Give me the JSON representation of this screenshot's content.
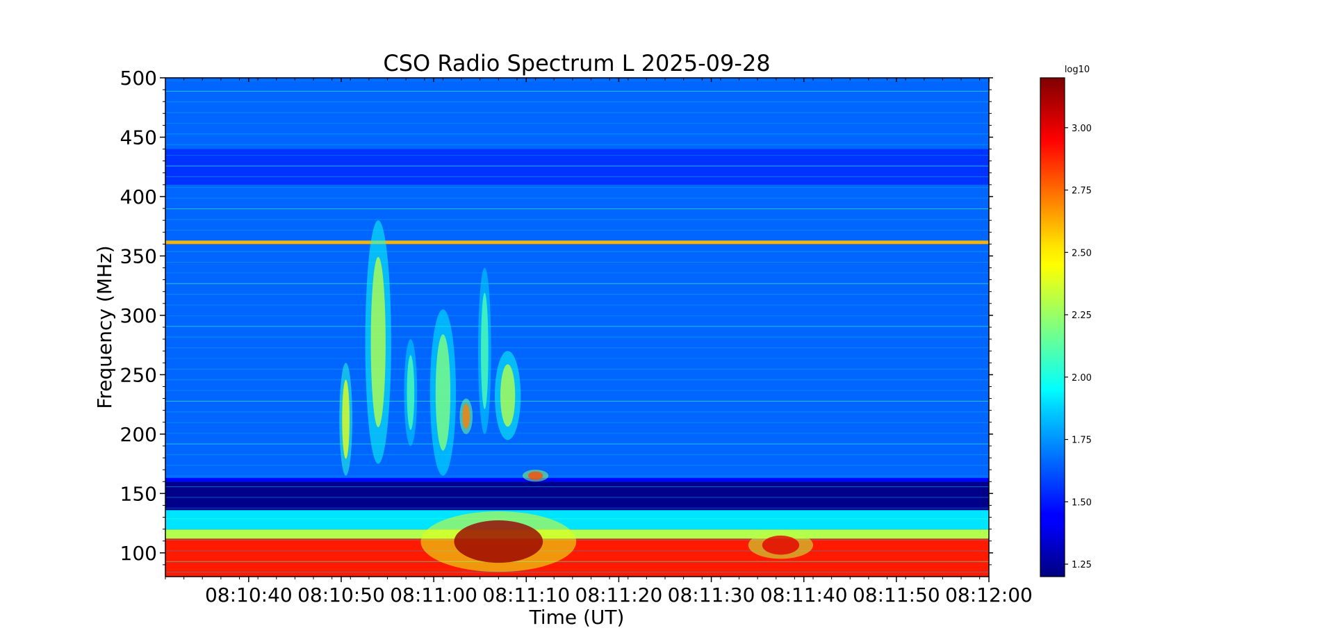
{
  "chart_data": {
    "type": "heatmap",
    "title": "CSO Radio Spectrum L 2025-09-28",
    "xlabel": "Time (UT)",
    "ylabel": "Frequency (MHz)",
    "x_range": [
      "08:10:31",
      "08:12:00"
    ],
    "x_ticks": [
      "08:10:40",
      "08:10:50",
      "08:11:00",
      "08:11:10",
      "08:11:20",
      "08:11:30",
      "08:11:40",
      "08:11:50",
      "08:12:00"
    ],
    "ylim": [
      80,
      500
    ],
    "y_ticks": [
      100,
      150,
      200,
      250,
      300,
      350,
      400,
      450,
      500
    ],
    "colorbar": {
      "label": "log10",
      "range": [
        1.2,
        3.2
      ],
      "ticks": [
        "1.25",
        "1.50",
        "1.75",
        "2.00",
        "2.25",
        "2.50",
        "2.75",
        "3.00"
      ],
      "colormap": "jet"
    },
    "background_level": 1.65,
    "bands": [
      {
        "f_low": 80,
        "f_high": 112,
        "level": 2.9
      },
      {
        "f_low": 112,
        "f_high": 120,
        "level": 2.3
      },
      {
        "f_low": 120,
        "f_high": 136,
        "level": 1.9
      },
      {
        "f_low": 136,
        "f_high": 160,
        "level": 1.22
      },
      {
        "f_low": 160,
        "f_high": 163,
        "level": 1.45
      },
      {
        "f_low": 360,
        "f_high": 363,
        "level": 2.6
      },
      {
        "f_low": 410,
        "f_high": 440,
        "level": 1.55
      }
    ],
    "bursts": [
      {
        "t_start": "08:10:50",
        "t_end": "08:10:51",
        "f_low": 165,
        "f_high": 260,
        "peak": 2.4
      },
      {
        "t_start": "08:10:53",
        "t_end": "08:10:55",
        "f_low": 175,
        "f_high": 380,
        "peak": 2.3
      },
      {
        "t_start": "08:10:57",
        "t_end": "08:10:58",
        "f_low": 190,
        "f_high": 280,
        "peak": 2.1
      },
      {
        "t_start": "08:11:00",
        "t_end": "08:11:02",
        "f_low": 165,
        "f_high": 305,
        "peak": 2.2
      },
      {
        "t_start": "08:11:03",
        "t_end": "08:11:04",
        "f_low": 200,
        "f_high": 230,
        "peak": 2.7
      },
      {
        "t_start": "08:11:05",
        "t_end": "08:11:06",
        "f_low": 200,
        "f_high": 340,
        "peak": 2.1
      },
      {
        "t_start": "08:11:07",
        "t_end": "08:11:09",
        "f_low": 195,
        "f_high": 270,
        "peak": 2.3
      },
      {
        "t_start": "08:11:10",
        "t_end": "08:11:12",
        "f_low": 160,
        "f_high": 170,
        "peak": 2.8
      },
      {
        "t_start": "08:11:01",
        "t_end": "08:11:13",
        "f_low": 84,
        "f_high": 135,
        "peak": 3.15
      },
      {
        "t_start": "08:11:35",
        "t_end": "08:11:40",
        "f_low": 95,
        "f_high": 118,
        "peak": 3.0
      }
    ]
  }
}
